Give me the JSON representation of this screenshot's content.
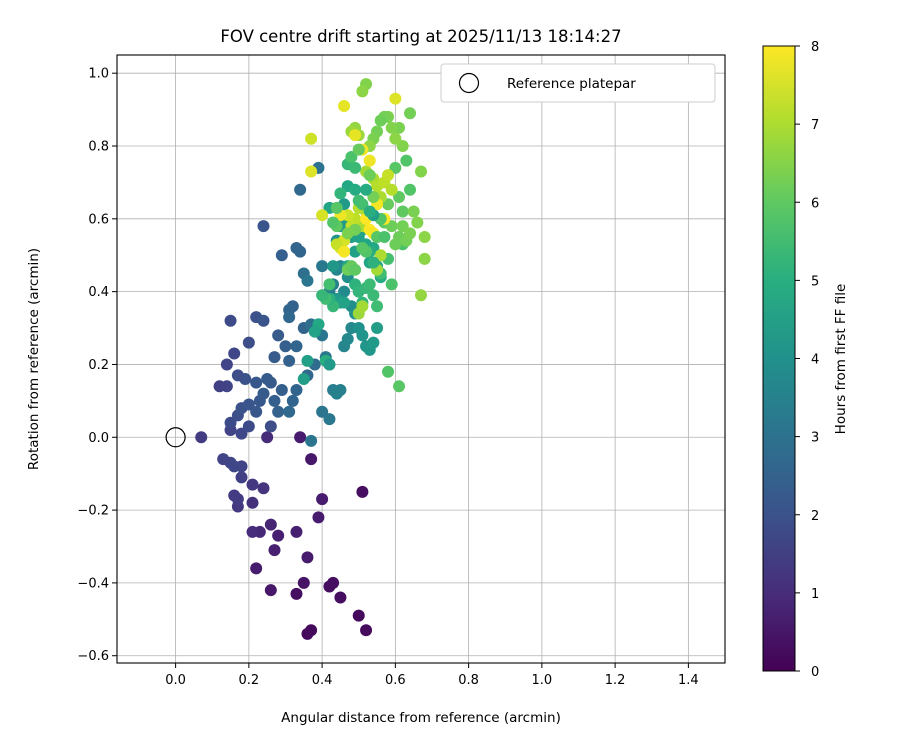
{
  "chart_data": {
    "type": "scatter",
    "title": "FOV centre drift starting at 2025/11/13 18:14:27",
    "xlabel": "Angular distance from reference (arcmin)",
    "ylabel": "Rotation from reference (arcmin)",
    "xlim": [
      -0.16,
      1.5
    ],
    "ylim": [
      -0.62,
      1.05
    ],
    "xticks": [
      0.0,
      0.2,
      0.4,
      0.6,
      0.8,
      1.0,
      1.2,
      1.4
    ],
    "yticks": [
      -0.6,
      -0.4,
      -0.2,
      0.0,
      0.2,
      0.4,
      0.6,
      0.8,
      1.0
    ],
    "xtick_labels": [
      "0.0",
      "0.2",
      "0.4",
      "0.6",
      "0.8",
      "1.0",
      "1.2",
      "1.4"
    ],
    "ytick_labels": [
      "−0.6",
      "−0.4",
      "−0.2",
      "0.0",
      "0.2",
      "0.4",
      "0.6",
      "0.8",
      "1.0"
    ],
    "grid": true,
    "legend": {
      "position": "top-right",
      "entries": [
        "Reference platepar"
      ]
    },
    "reference_point": {
      "x": 0.0,
      "y": 0.0,
      "label": "Reference platepar"
    },
    "colorbar": {
      "label": "Hours from first FF file",
      "min": 0,
      "max": 8,
      "ticks": [
        0,
        1,
        2,
        3,
        4,
        5,
        6,
        7,
        8
      ],
      "tick_labels": [
        "0",
        "1",
        "2",
        "3",
        "4",
        "5",
        "6",
        "7",
        "8"
      ],
      "colormap": "viridis"
    },
    "points": [
      [
        0.51,
        -0.15,
        0.3
      ],
      [
        0.52,
        -0.53,
        0.2
      ],
      [
        0.5,
        -0.49,
        0.2
      ],
      [
        0.45,
        -0.44,
        0.3
      ],
      [
        0.42,
        -0.41,
        0.3
      ],
      [
        0.43,
        -0.4,
        0.3
      ],
      [
        0.37,
        -0.53,
        0.2
      ],
      [
        0.36,
        -0.54,
        0.2
      ],
      [
        0.33,
        -0.43,
        0.3
      ],
      [
        0.35,
        -0.4,
        0.4
      ],
      [
        0.26,
        -0.42,
        0.5
      ],
      [
        0.22,
        -0.36,
        0.6
      ],
      [
        0.36,
        -0.33,
        0.6
      ],
      [
        0.27,
        -0.31,
        0.7
      ],
      [
        0.33,
        -0.26,
        0.7
      ],
      [
        0.28,
        -0.27,
        0.7
      ],
      [
        0.26,
        -0.24,
        0.8
      ],
      [
        0.39,
        -0.22,
        0.6
      ],
      [
        0.4,
        -0.17,
        0.6
      ],
      [
        0.23,
        -0.26,
        0.9
      ],
      [
        0.21,
        -0.26,
        1.0
      ],
      [
        0.21,
        -0.18,
        1.1
      ],
      [
        0.24,
        -0.14,
        1.2
      ],
      [
        0.21,
        -0.13,
        1.3
      ],
      [
        0.17,
        -0.19,
        1.3
      ],
      [
        0.17,
        -0.17,
        1.4
      ],
      [
        0.16,
        -0.16,
        1.4
      ],
      [
        0.18,
        -0.11,
        1.5
      ],
      [
        0.18,
        -0.08,
        1.6
      ],
      [
        0.15,
        -0.07,
        1.6
      ],
      [
        0.13,
        -0.06,
        1.6
      ],
      [
        0.16,
        -0.08,
        1.7
      ],
      [
        0.37,
        -0.06,
        0.5
      ],
      [
        0.34,
        0.0,
        0.6
      ],
      [
        0.25,
        0.0,
        1.0
      ],
      [
        0.07,
        0.0,
        1.4
      ],
      [
        0.15,
        0.02,
        1.6
      ],
      [
        0.18,
        0.01,
        1.7
      ],
      [
        0.2,
        0.03,
        1.8
      ],
      [
        0.26,
        0.03,
        1.9
      ],
      [
        0.15,
        0.04,
        1.8
      ],
      [
        0.17,
        0.06,
        1.9
      ],
      [
        0.18,
        0.08,
        2.0
      ],
      [
        0.2,
        0.09,
        2.1
      ],
      [
        0.22,
        0.07,
        2.2
      ],
      [
        0.23,
        0.1,
        2.2
      ],
      [
        0.24,
        0.12,
        2.3
      ],
      [
        0.25,
        0.16,
        2.3
      ],
      [
        0.27,
        0.1,
        2.4
      ],
      [
        0.28,
        0.07,
        2.5
      ],
      [
        0.31,
        0.07,
        2.7
      ],
      [
        0.32,
        0.1,
        2.6
      ],
      [
        0.29,
        0.13,
        2.4
      ],
      [
        0.26,
        0.15,
        2.3
      ],
      [
        0.22,
        0.15,
        2.2
      ],
      [
        0.19,
        0.16,
        2.0
      ],
      [
        0.17,
        0.17,
        1.9
      ],
      [
        0.14,
        0.14,
        1.6
      ],
      [
        0.12,
        0.14,
        1.5
      ],
      [
        0.16,
        0.23,
        1.7
      ],
      [
        0.14,
        0.2,
        1.6
      ],
      [
        0.2,
        0.26,
        1.9
      ],
      [
        0.22,
        0.33,
        2.0
      ],
      [
        0.24,
        0.32,
        2.1
      ],
      [
        0.15,
        0.32,
        1.8
      ],
      [
        0.27,
        0.22,
        2.3
      ],
      [
        0.28,
        0.28,
        2.3
      ],
      [
        0.3,
        0.25,
        2.4
      ],
      [
        0.31,
        0.21,
        2.5
      ],
      [
        0.33,
        0.25,
        2.6
      ],
      [
        0.33,
        0.13,
        2.6
      ],
      [
        0.35,
        0.3,
        2.6
      ],
      [
        0.36,
        0.17,
        2.7
      ],
      [
        0.38,
        0.2,
        2.8
      ],
      [
        0.37,
        0.31,
        2.9
      ],
      [
        0.39,
        0.31,
        3.0
      ],
      [
        0.4,
        0.28,
        3.1
      ],
      [
        0.41,
        0.22,
        3.2
      ],
      [
        0.42,
        0.2,
        3.3
      ],
      [
        0.4,
        0.07,
        3.1
      ],
      [
        0.42,
        0.05,
        3.2
      ],
      [
        0.37,
        -0.01,
        3.1
      ],
      [
        0.43,
        0.13,
        3.4
      ],
      [
        0.45,
        0.13,
        3.5
      ],
      [
        0.44,
        0.12,
        3.5
      ],
      [
        0.46,
        0.25,
        3.6
      ],
      [
        0.47,
        0.27,
        3.7
      ],
      [
        0.48,
        0.3,
        3.7
      ],
      [
        0.32,
        0.36,
        2.5
      ],
      [
        0.31,
        0.35,
        2.6
      ],
      [
        0.29,
        0.5,
        2.4
      ],
      [
        0.24,
        0.58,
        2.1
      ],
      [
        0.31,
        0.33,
        2.7
      ],
      [
        0.33,
        0.52,
        2.6
      ],
      [
        0.34,
        0.51,
        2.6
      ],
      [
        0.35,
        0.45,
        2.9
      ],
      [
        0.36,
        0.43,
        3.1
      ],
      [
        0.34,
        0.68,
        2.7
      ],
      [
        0.39,
        0.74,
        3.0
      ],
      [
        0.4,
        0.47,
        3.2
      ],
      [
        0.42,
        0.4,
        3.4
      ],
      [
        0.43,
        0.42,
        3.5
      ],
      [
        0.44,
        0.46,
        3.6
      ],
      [
        0.45,
        0.47,
        3.7
      ],
      [
        0.46,
        0.4,
        3.8
      ],
      [
        0.47,
        0.44,
        3.9
      ],
      [
        0.48,
        0.36,
        3.9
      ],
      [
        0.49,
        0.34,
        4.0
      ],
      [
        0.5,
        0.3,
        4.0
      ],
      [
        0.51,
        0.28,
        4.1
      ],
      [
        0.52,
        0.25,
        4.1
      ],
      [
        0.53,
        0.24,
        4.2
      ],
      [
        0.54,
        0.26,
        4.3
      ],
      [
        0.55,
        0.3,
        4.4
      ],
      [
        0.44,
        0.54,
        4.1
      ],
      [
        0.45,
        0.58,
        4.2
      ],
      [
        0.46,
        0.64,
        4.3
      ],
      [
        0.47,
        0.6,
        4.4
      ],
      [
        0.48,
        0.55,
        4.5
      ],
      [
        0.49,
        0.51,
        4.5
      ],
      [
        0.5,
        0.55,
        4.6
      ],
      [
        0.51,
        0.57,
        4.6
      ],
      [
        0.52,
        0.53,
        4.7
      ],
      [
        0.53,
        0.48,
        4.7
      ],
      [
        0.54,
        0.52,
        4.8
      ],
      [
        0.55,
        0.47,
        4.8
      ],
      [
        0.56,
        0.44,
        4.9
      ],
      [
        0.47,
        0.69,
        4.8
      ],
      [
        0.49,
        0.68,
        4.9
      ],
      [
        0.42,
        0.63,
        4.7
      ],
      [
        0.43,
        0.47,
        4.2
      ],
      [
        0.44,
        0.38,
        4.3
      ],
      [
        0.45,
        0.37,
        4.5
      ],
      [
        0.46,
        0.37,
        4.6
      ],
      [
        0.47,
        0.47,
        4.8
      ],
      [
        0.48,
        0.46,
        5.0
      ],
      [
        0.49,
        0.42,
        5.1
      ],
      [
        0.5,
        0.4,
        5.2
      ],
      [
        0.51,
        0.37,
        5.2
      ],
      [
        0.52,
        0.41,
        5.3
      ],
      [
        0.53,
        0.42,
        5.4
      ],
      [
        0.54,
        0.39,
        5.4
      ],
      [
        0.55,
        0.36,
        5.5
      ],
      [
        0.56,
        0.45,
        5.5
      ],
      [
        0.58,
        0.49,
        5.6
      ],
      [
        0.59,
        0.42,
        5.7
      ],
      [
        0.58,
        0.18,
        5.8
      ],
      [
        0.61,
        0.14,
        5.9
      ],
      [
        0.62,
        0.53,
        5.7
      ],
      [
        0.63,
        0.76,
        5.8
      ],
      [
        0.64,
        0.68,
        5.8
      ],
      [
        0.6,
        0.74,
        5.9
      ],
      [
        0.61,
        0.66,
        6.0
      ],
      [
        0.62,
        0.62,
        6.0
      ],
      [
        0.57,
        0.59,
        6.0
      ],
      [
        0.58,
        0.64,
        6.1
      ],
      [
        0.59,
        0.58,
        6.2
      ],
      [
        0.6,
        0.53,
        6.2
      ],
      [
        0.61,
        0.55,
        6.2
      ],
      [
        0.62,
        0.58,
        6.3
      ],
      [
        0.63,
        0.54,
        6.3
      ],
      [
        0.64,
        0.56,
        6.4
      ],
      [
        0.65,
        0.62,
        6.4
      ],
      [
        0.66,
        0.59,
        6.5
      ],
      [
        0.67,
        0.73,
        6.5
      ],
      [
        0.68,
        0.55,
        6.6
      ],
      [
        0.68,
        0.49,
        6.6
      ],
      [
        0.67,
        0.39,
        6.7
      ],
      [
        0.64,
        0.89,
        6.3
      ],
      [
        0.61,
        0.85,
        6.4
      ],
      [
        0.62,
        0.8,
        6.5
      ],
      [
        0.6,
        0.82,
        6.6
      ],
      [
        0.59,
        0.85,
        6.5
      ],
      [
        0.58,
        0.88,
        6.4
      ],
      [
        0.57,
        0.88,
        6.3
      ],
      [
        0.56,
        0.87,
        6.2
      ],
      [
        0.55,
        0.84,
        6.3
      ],
      [
        0.54,
        0.82,
        6.4
      ],
      [
        0.53,
        0.8,
        6.6
      ],
      [
        0.52,
        0.97,
        6.5
      ],
      [
        0.51,
        0.95,
        6.6
      ],
      [
        0.49,
        0.85,
        6.7
      ],
      [
        0.5,
        0.83,
        6.8
      ],
      [
        0.48,
        0.84,
        6.8
      ],
      [
        0.52,
        0.73,
        6.9
      ],
      [
        0.54,
        0.71,
        7.0
      ],
      [
        0.55,
        0.69,
        7.1
      ],
      [
        0.56,
        0.66,
        7.0
      ],
      [
        0.57,
        0.7,
        7.2
      ],
      [
        0.58,
        0.72,
        7.3
      ],
      [
        0.59,
        0.68,
        7.1
      ],
      [
        0.52,
        0.62,
        6.9
      ],
      [
        0.51,
        0.58,
        7.0
      ],
      [
        0.5,
        0.63,
        7.1
      ],
      [
        0.49,
        0.6,
        7.2
      ],
      [
        0.48,
        0.58,
        7.3
      ],
      [
        0.47,
        0.61,
        7.4
      ],
      [
        0.46,
        0.54,
        7.5
      ],
      [
        0.45,
        0.52,
        7.5
      ],
      [
        0.44,
        0.53,
        7.3
      ],
      [
        0.5,
        0.34,
        6.8
      ],
      [
        0.51,
        0.36,
        6.9
      ],
      [
        0.55,
        0.46,
        6.9
      ],
      [
        0.56,
        0.5,
        7.0
      ],
      [
        0.37,
        0.82,
        7.4
      ],
      [
        0.37,
        0.73,
        7.6
      ],
      [
        0.4,
        0.61,
        7.5
      ],
      [
        0.46,
        0.91,
        7.7
      ],
      [
        0.49,
        0.83,
        7.7
      ],
      [
        0.51,
        0.79,
        7.8
      ],
      [
        0.53,
        0.76,
        7.8
      ],
      [
        0.55,
        0.64,
        7.9
      ],
      [
        0.57,
        0.6,
        8.0
      ],
      [
        0.52,
        0.6,
        8.0
      ],
      [
        0.53,
        0.57,
        8.0
      ],
      [
        0.54,
        0.56,
        7.9
      ],
      [
        0.6,
        0.93,
        7.6
      ],
      [
        0.45,
        0.61,
        7.8
      ],
      [
        0.46,
        0.51,
        7.9
      ],
      [
        0.47,
        0.46,
        6.2
      ],
      [
        0.48,
        0.47,
        6.1
      ],
      [
        0.49,
        0.46,
        6.0
      ],
      [
        0.43,
        0.36,
        5.3
      ],
      [
        0.42,
        0.38,
        5.1
      ],
      [
        0.41,
        0.21,
        5.0
      ],
      [
        0.45,
        0.67,
        5.2
      ],
      [
        0.47,
        0.75,
        5.3
      ],
      [
        0.49,
        0.74,
        5.4
      ],
      [
        0.5,
        0.65,
        5.5
      ],
      [
        0.51,
        0.64,
        5.6
      ],
      [
        0.48,
        0.77,
        5.7
      ],
      [
        0.5,
        0.79,
        6.1
      ],
      [
        0.53,
        0.72,
        6.2
      ],
      [
        0.54,
        0.66,
        6.3
      ],
      [
        0.55,
        0.55,
        5.9
      ],
      [
        0.56,
        0.6,
        5.8
      ],
      [
        0.57,
        0.55,
        5.7
      ],
      [
        0.49,
        0.57,
        6.3
      ],
      [
        0.47,
        0.56,
        6.4
      ],
      [
        0.44,
        0.58,
        6.0
      ],
      [
        0.44,
        0.63,
        5.9
      ],
      [
        0.43,
        0.59,
        5.8
      ],
      [
        0.42,
        0.42,
        5.6
      ],
      [
        0.41,
        0.38,
        5.5
      ],
      [
        0.4,
        0.39,
        5.3
      ],
      [
        0.39,
        0.31,
        4.8
      ],
      [
        0.38,
        0.29,
        4.6
      ],
      [
        0.36,
        0.21,
        4.5
      ],
      [
        0.35,
        0.16,
        4.4
      ],
      [
        0.42,
        0.2,
        4.3
      ],
      [
        0.53,
        0.51,
        5.0
      ],
      [
        0.54,
        0.48,
        5.1
      ],
      [
        0.52,
        0.51,
        5.8
      ],
      [
        0.51,
        0.52,
        5.9
      ],
      [
        0.54,
        0.61,
        4.5
      ],
      [
        0.52,
        0.68,
        4.9
      ],
      [
        0.53,
        0.62,
        5.0
      ]
    ]
  }
}
